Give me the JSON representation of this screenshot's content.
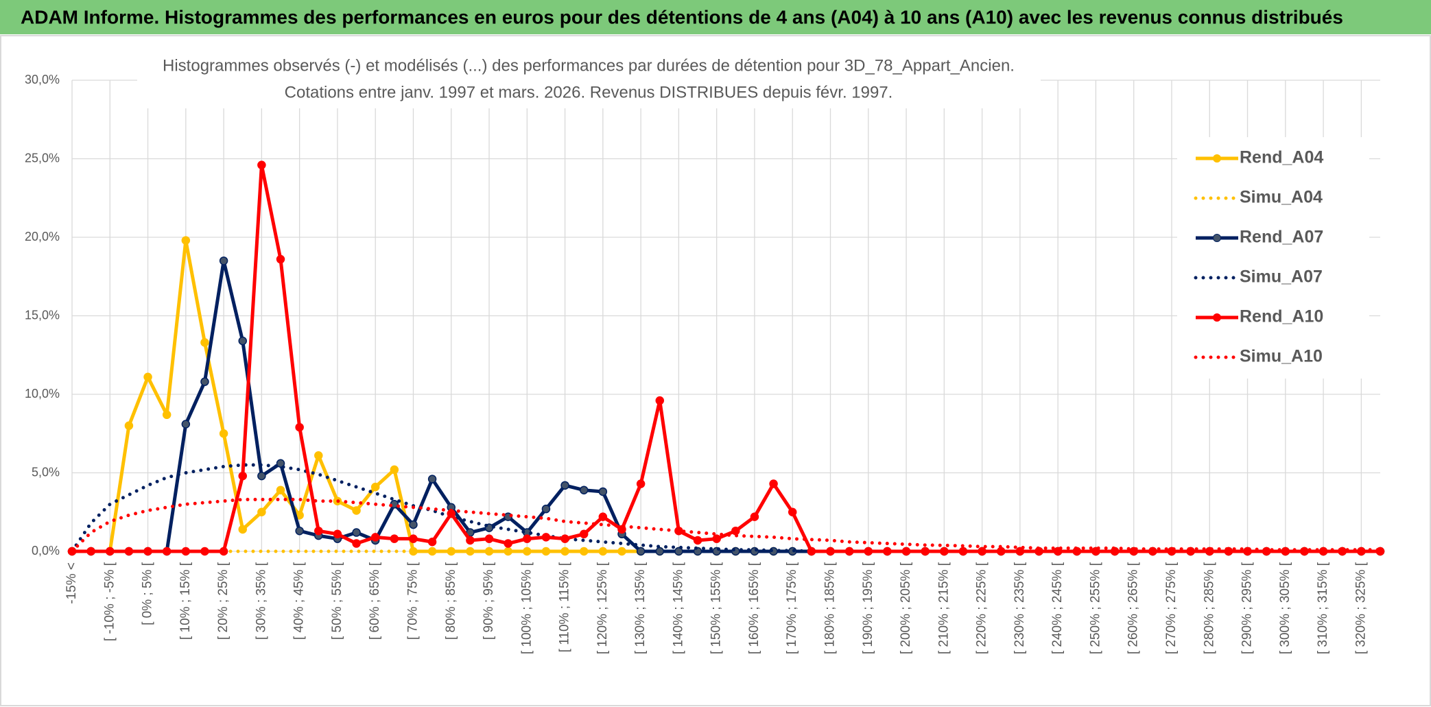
{
  "chart_data": {
    "type": "line",
    "title": "ADAM Informe. Histogrammes des performances en euros pour des détentions de 4 ans (A04) à 10 ans (A10) avec les revenus connus distribués",
    "subtitle": [
      "Histogrammes observés (-) et modélisés (...) des performances par durées de détention pour 3D_78_Appart_Ancien.",
      "Cotations entre janv. 1997 et mars. 2026. Revenus DISTRIBUES depuis févr. 1997."
    ],
    "categories": [
      "-15% <",
      null,
      "[ -10% ; -5% [",
      null,
      "[ 0% ; 5% [",
      null,
      "[ 10% ; 15% [",
      null,
      "[ 20% ; 25% [",
      null,
      "[ 30% ; 35% [",
      null,
      "[ 40% ; 45% [",
      null,
      "[ 50% ; 55% [",
      null,
      "[ 60% ; 65% [",
      null,
      "[ 70% ; 75% [",
      null,
      "[ 80% ; 85% [",
      null,
      "[ 90% ; 95% [",
      null,
      "[ 100% ; 105% [",
      null,
      "[ 110% ; 115% [",
      null,
      "[ 120% ; 125% [",
      null,
      "[ 130% ; 135% [",
      null,
      "[ 140% ; 145% [",
      null,
      "[ 150% ; 155% [",
      null,
      "[ 160% ; 165% [",
      null,
      "[ 170% ; 175% [",
      null,
      "[ 180% ; 185% [",
      null,
      "[ 190% ; 195% [",
      null,
      "[ 200% ; 205% [",
      null,
      "[ 210% ; 215% [",
      null,
      "[ 220% ; 225% [",
      null,
      "[ 230% ; 235% [",
      null,
      "[ 240% ; 245% [",
      null,
      "[ 250% ; 255% [",
      null,
      "[ 260% ; 265% [",
      null,
      "[ 270% ; 275% [",
      null,
      "[ 280% ; 285% [",
      null,
      "[ 290% ; 295% [",
      null,
      "[ 300% ; 305% [",
      null,
      "[ 310% ; 315% [",
      null,
      "[ 320% ; 325% [",
      null
    ],
    "series": [
      {
        "name": "Rend_A04",
        "color": "#ffc000",
        "style": "solid",
        "markers": true,
        "values": [
          0,
          0,
          0,
          8.0,
          11.1,
          8.7,
          19.8,
          13.3,
          7.5,
          1.4,
          2.5,
          3.9,
          2.3,
          6.1,
          3.2,
          2.6,
          4.1,
          5.2,
          0,
          0,
          0,
          0,
          0,
          0,
          0,
          0,
          0,
          0,
          0,
          0,
          0,
          0,
          0,
          0,
          0,
          0,
          0,
          0,
          0,
          0,
          0,
          0,
          0,
          0,
          0,
          0,
          0,
          0,
          0,
          0,
          0,
          0,
          0,
          0,
          0,
          0,
          0,
          0,
          0,
          0,
          0,
          0,
          0,
          0,
          0,
          0,
          0,
          0,
          0,
          0
        ]
      },
      {
        "name": "Simu_A04",
        "color": "#ffc000",
        "style": "dotted",
        "markers": false,
        "values": [
          0,
          0,
          0,
          0,
          0,
          0,
          0,
          0,
          0,
          0,
          0,
          0,
          0,
          0,
          0,
          0,
          0,
          0,
          0,
          0,
          0,
          0,
          0,
          0,
          0,
          0,
          0,
          0,
          0,
          0,
          0,
          0,
          0,
          0,
          0,
          0,
          0,
          0,
          0,
          0,
          0,
          0,
          0,
          0,
          0,
          0,
          0,
          0,
          0,
          0,
          0,
          0,
          0,
          0,
          0,
          0,
          0,
          0,
          0,
          0,
          0,
          0,
          0,
          0,
          0,
          0,
          0,
          0,
          0,
          0
        ]
      },
      {
        "name": "Rend_A07",
        "color": "#002060",
        "style": "solid",
        "markers": true,
        "values": [
          0,
          0,
          0,
          0,
          0,
          0,
          8.1,
          10.8,
          18.5,
          13.4,
          4.8,
          5.6,
          1.3,
          1.0,
          0.8,
          1.2,
          0.7,
          3.0,
          1.7,
          4.6,
          2.8,
          1.2,
          1.5,
          2.2,
          1.2,
          2.7,
          4.2,
          3.9,
          3.8,
          1.1,
          0,
          0,
          0,
          0,
          0,
          0,
          0,
          0,
          0,
          0,
          0,
          0,
          0,
          0,
          0,
          0,
          0,
          0,
          0,
          0,
          0,
          0,
          0,
          0,
          0,
          0,
          0,
          0,
          0,
          0,
          0,
          0,
          0,
          0,
          0,
          0,
          0,
          0,
          0,
          0
        ]
      },
      {
        "name": "Simu_A07",
        "color": "#002060",
        "style": "dotted",
        "markers": false,
        "values": [
          0,
          1.8,
          3.0,
          3.6,
          4.2,
          4.7,
          5.0,
          5.2,
          5.4,
          5.5,
          5.5,
          5.4,
          5.2,
          4.9,
          4.5,
          4.1,
          3.7,
          3.3,
          2.9,
          2.6,
          2.2,
          1.9,
          1.6,
          1.4,
          1.2,
          1.0,
          0.8,
          0.7,
          0.6,
          0.5,
          0.4,
          0.3,
          0.25,
          0.2,
          0.15,
          0.1,
          0.1,
          0.05,
          0.05,
          0,
          0,
          0,
          0,
          0,
          0,
          0,
          0,
          0,
          0,
          0,
          0,
          0,
          0,
          0,
          0,
          0,
          0,
          0,
          0,
          0,
          0,
          0,
          0,
          0,
          0,
          0,
          0,
          0,
          0,
          0
        ]
      },
      {
        "name": "Rend_A10",
        "color": "#ff0000",
        "style": "solid",
        "markers": true,
        "values": [
          0,
          0,
          0,
          0,
          0,
          0,
          0,
          0,
          0,
          4.8,
          24.6,
          18.6,
          7.9,
          1.3,
          1.1,
          0.5,
          0.9,
          0.8,
          0.8,
          0.6,
          2.4,
          0.7,
          0.8,
          0.5,
          0.8,
          0.9,
          0.8,
          1.1,
          2.2,
          1.4,
          4.3,
          9.6,
          1.3,
          0.7,
          0.8,
          1.3,
          2.2,
          4.3,
          2.5,
          0,
          0,
          0,
          0,
          0,
          0,
          0,
          0,
          0,
          0,
          0,
          0,
          0,
          0,
          0,
          0,
          0,
          0,
          0,
          0,
          0,
          0,
          0,
          0,
          0,
          0,
          0,
          0,
          0,
          0,
          0
        ]
      },
      {
        "name": "Simu_A10",
        "color": "#ff0000",
        "style": "dotted",
        "markers": false,
        "values": [
          0,
          1.2,
          1.9,
          2.3,
          2.6,
          2.8,
          3.0,
          3.1,
          3.2,
          3.3,
          3.3,
          3.3,
          3.3,
          3.2,
          3.2,
          3.1,
          3.0,
          2.9,
          2.8,
          2.7,
          2.6,
          2.5,
          2.4,
          2.3,
          2.2,
          2.1,
          1.9,
          1.8,
          1.7,
          1.6,
          1.5,
          1.4,
          1.3,
          1.2,
          1.1,
          1.0,
          0.95,
          0.9,
          0.8,
          0.75,
          0.7,
          0.6,
          0.55,
          0.5,
          0.45,
          0.4,
          0.38,
          0.35,
          0.3,
          0.3,
          0.25,
          0.2,
          0.2,
          0.2,
          0.2,
          0.2,
          0.15,
          0.15,
          0.15,
          0.15,
          0.15,
          0.15,
          0.15,
          0.1,
          0.1,
          0.1,
          0.1,
          0.1,
          0.1,
          0.1
        ]
      }
    ],
    "ylim": [
      0,
      30
    ],
    "yticks": [
      {
        "value": 0,
        "label": "0,0%"
      },
      {
        "value": 5,
        "label": "5,0%"
      },
      {
        "value": 10,
        "label": "10,0%"
      },
      {
        "value": 15,
        "label": "15,0%"
      },
      {
        "value": 20,
        "label": "20,0%"
      },
      {
        "value": 25,
        "label": "25,0%"
      },
      {
        "value": 30,
        "label": "30,0%"
      }
    ],
    "grid": true,
    "legend": "right"
  }
}
